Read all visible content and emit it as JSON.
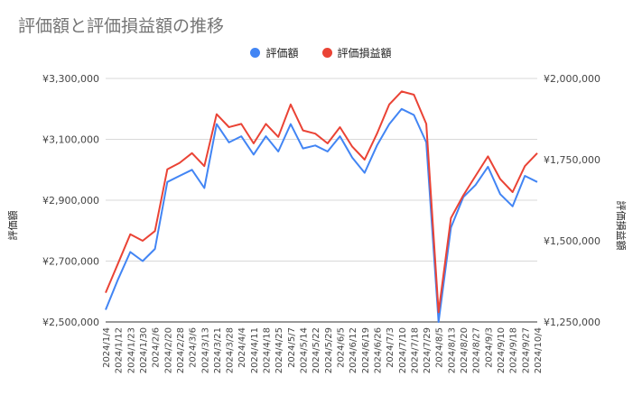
{
  "chart_data": {
    "type": "line",
    "title": "評価額と評価損益額の推移",
    "ylabel_left": "評価額",
    "ylabel_right": "評価損益額",
    "ylim_left": [
      2500000,
      3300000
    ],
    "ylim_right": [
      1250000,
      2000000
    ],
    "yticks_left": [
      "¥2,500,000",
      "¥2,700,000",
      "¥2,900,000",
      "¥3,100,000",
      "¥3,300,000"
    ],
    "yticks_right": [
      "¥1,250,000",
      "¥1,500,000",
      "¥1,750,000",
      "¥2,000,000"
    ],
    "legend_position": "top-center",
    "x_tick_labels": [
      "2024/1/4",
      "2024/1/12",
      "2024/1/23",
      "2024/1/30",
      "2024/2/6",
      "2024/2/20",
      "2024/2/28",
      "2024/3/6",
      "2024/3/13",
      "2024/3/21",
      "2024/3/28",
      "2024/4/4",
      "2024/4/11",
      "2024/4/18",
      "2024/4/25",
      "2024/5/7",
      "2024/5/14",
      "2024/5/22",
      "2024/5/29",
      "2024/6/5",
      "2024/6/12",
      "2024/6/19",
      "2024/6/26",
      "2024/7/3",
      "2024/7/10",
      "2024/7/18",
      "2024/7/29",
      "2024/8/5",
      "2024/8/13",
      "2024/8/20",
      "2024/8/27",
      "2024/9/3",
      "2024/9/10",
      "2024/9/18",
      "2024/9/27",
      "2024/10/4"
    ],
    "x": [
      "2024/1/4",
      "2024/1/12",
      "2024/1/23",
      "2024/1/30",
      "2024/2/6",
      "2024/2/20",
      "2024/2/28",
      "2024/3/6",
      "2024/3/13",
      "2024/3/21",
      "2024/3/28",
      "2024/4/4",
      "2024/4/11",
      "2024/4/18",
      "2024/4/25",
      "2024/5/7",
      "2024/5/14",
      "2024/5/22",
      "2024/5/29",
      "2024/6/5",
      "2024/6/12",
      "2024/6/19",
      "2024/6/26",
      "2024/7/3",
      "2024/7/10",
      "2024/7/18",
      "2024/7/29",
      "2024/8/5",
      "2024/8/13",
      "2024/8/20",
      "2024/8/27",
      "2024/9/3",
      "2024/9/10",
      "2024/9/18",
      "2024/9/27",
      "2024/10/4"
    ],
    "series": [
      {
        "name": "評価額",
        "color": "#4285f4",
        "axis": "left",
        "values": [
          2540000,
          2640000,
          2730000,
          2700000,
          2740000,
          2960000,
          2980000,
          3000000,
          2940000,
          3150000,
          3090000,
          3110000,
          3050000,
          3110000,
          3060000,
          3150000,
          3070000,
          3080000,
          3060000,
          3110000,
          3040000,
          2990000,
          3080000,
          3150000,
          3200000,
          3180000,
          3090000,
          2500000,
          2810000,
          2910000,
          2950000,
          3010000,
          2920000,
          2880000,
          2980000,
          2960000
        ]
      },
      {
        "name": "評価損益額",
        "color": "#ea4335",
        "axis": "right",
        "values": [
          1340000,
          1430000,
          1520000,
          1500000,
          1530000,
          1720000,
          1740000,
          1770000,
          1730000,
          1890000,
          1850000,
          1860000,
          1800000,
          1860000,
          1820000,
          1920000,
          1840000,
          1830000,
          1800000,
          1850000,
          1790000,
          1750000,
          1830000,
          1920000,
          1960000,
          1950000,
          1860000,
          1280000,
          1570000,
          1640000,
          1700000,
          1760000,
          1690000,
          1650000,
          1730000,
          1770000
        ]
      }
    ]
  }
}
